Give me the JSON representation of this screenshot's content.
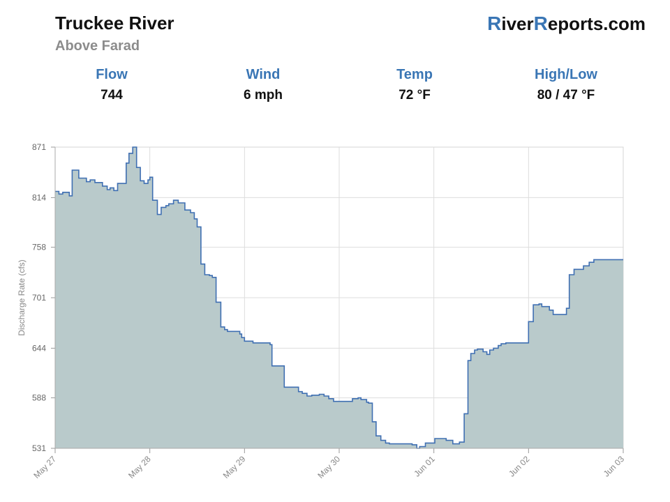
{
  "header": {
    "title": "Truckee River",
    "subtitle": "Above Farad",
    "brand": {
      "cap1": "R",
      "part1": "iver",
      "cap2": "R",
      "part2": "eports.com"
    }
  },
  "stats": [
    {
      "label": "Flow",
      "value": "744"
    },
    {
      "label": "Wind",
      "value": "6 mph"
    },
    {
      "label": "Temp",
      "value": "72 °F"
    },
    {
      "label": "High/Low",
      "value": "80 / 47 °F"
    }
  ],
  "colors": {
    "accent": "#3a76b5",
    "line": "#3f6fb2",
    "fill": "#b9cacb",
    "grid": "#dddddd"
  },
  "chart_data": {
    "type": "area",
    "ylabel": "Discharge Rate (cfs)",
    "ylim": [
      531,
      871
    ],
    "yticks": [
      531,
      588,
      644,
      701,
      758,
      814,
      871
    ],
    "xlim": [
      0,
      6
    ],
    "xticks": [
      {
        "x": 0,
        "label": "May 27"
      },
      {
        "x": 1,
        "label": "May 28"
      },
      {
        "x": 2,
        "label": "May 29"
      },
      {
        "x": 3,
        "label": "May 30"
      },
      {
        "x": 4,
        "label": "Jun 01"
      },
      {
        "x": 5,
        "label": "Jun 02"
      },
      {
        "x": 6,
        "label": "Jun 03"
      }
    ],
    "grid": true,
    "series": [
      {
        "step": true,
        "x": [
          0,
          0.04,
          0.08,
          0.15,
          0.18,
          0.25,
          0.25,
          0.33,
          0.37,
          0.42,
          0.5,
          0.55,
          0.58,
          0.62,
          0.66,
          0.75,
          0.78,
          0.82,
          0.86,
          0.9,
          0.94,
          0.98,
          1.0,
          1.03,
          1.08,
          1.12,
          1.17,
          1.2,
          1.25,
          1.3,
          1.37,
          1.43,
          1.47,
          1.5,
          1.54,
          1.58,
          1.63,
          1.66,
          1.7,
          1.75,
          1.79,
          1.82,
          1.95,
          1.97,
          2.0,
          2.09,
          2.15,
          2.27,
          2.29,
          2.42,
          2.57,
          2.61,
          2.66,
          2.71,
          2.79,
          2.84,
          2.89,
          2.94,
          2.95,
          2.98,
          3.14,
          3.2,
          3.23,
          3.29,
          3.31,
          3.35,
          3.39,
          3.44,
          3.49,
          3.53,
          3.67,
          3.77,
          3.82,
          3.85,
          3.91,
          4.01,
          4.04,
          4.07,
          4.13,
          4.2,
          4.27,
          4.32,
          4.36,
          4.39,
          4.43,
          4.46,
          4.49,
          4.52,
          4.56,
          4.59,
          4.63,
          4.68,
          4.71,
          4.76,
          4.85,
          5.0,
          5.05,
          5.11,
          5.14,
          5.22,
          5.26,
          5.29,
          5.33,
          5.4,
          5.43,
          5.48,
          5.53,
          5.58,
          5.64,
          5.69,
          5.71,
          5.79
        ],
        "values": [
          821,
          818,
          820,
          816,
          845,
          840,
          836,
          832,
          834,
          831,
          827,
          823,
          825,
          822,
          830,
          853,
          864,
          871,
          848,
          833,
          830,
          834,
          837,
          811,
          795,
          803,
          805,
          807,
          811,
          808,
          800,
          797,
          790,
          781,
          739,
          727,
          726,
          724,
          696,
          668,
          665,
          663,
          660,
          656,
          652,
          650,
          650,
          648,
          624,
          600,
          595,
          593,
          590,
          591,
          592,
          590,
          587,
          584,
          584,
          584,
          587,
          588,
          586,
          583,
          582,
          561,
          545,
          540,
          537,
          536,
          536,
          535,
          531,
          533,
          537,
          542,
          542,
          542,
          540,
          536,
          538,
          570,
          630,
          638,
          642,
          643,
          643,
          640,
          637,
          642,
          644,
          647,
          649,
          650,
          650,
          674,
          693,
          694,
          691,
          687,
          682,
          682,
          682,
          689,
          727,
          733,
          733,
          737,
          741,
          744,
          744,
          744
        ]
      }
    ]
  }
}
